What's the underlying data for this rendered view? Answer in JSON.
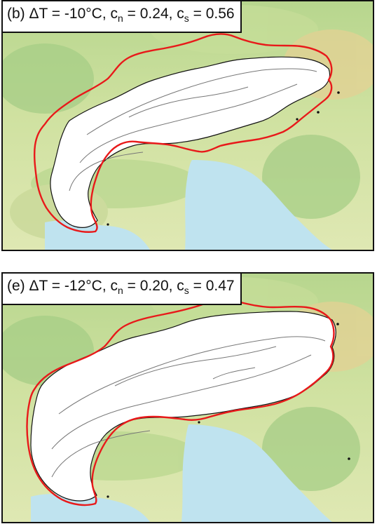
{
  "panels": [
    {
      "id": "b",
      "prefix": "(b) ΔT = ",
      "dT": "-10°C",
      "cn_sym": "c",
      "cn_sub": "n",
      "cn_val": " = 0.24, ",
      "cs_sym": "c",
      "cs_sub": "s",
      "cs_val": " = 0.56"
    },
    {
      "id": "e",
      "prefix": "(e) ΔT = ",
      "dT": "-12°C",
      "cn_sym": "c",
      "cn_sub": "n",
      "cn_val": " = 0.20, ",
      "cs_sym": "c",
      "cs_sub": "s",
      "cs_val": " = 0.47"
    }
  ],
  "colors": {
    "outline_red": "#e8191a",
    "ice_fill": "#ffffff",
    "contour": "#777777",
    "sea": "#bfe3ef",
    "lowland": "#d9e7a6",
    "upland": "#a9cf8f",
    "mountain": "#e6d29a"
  }
}
